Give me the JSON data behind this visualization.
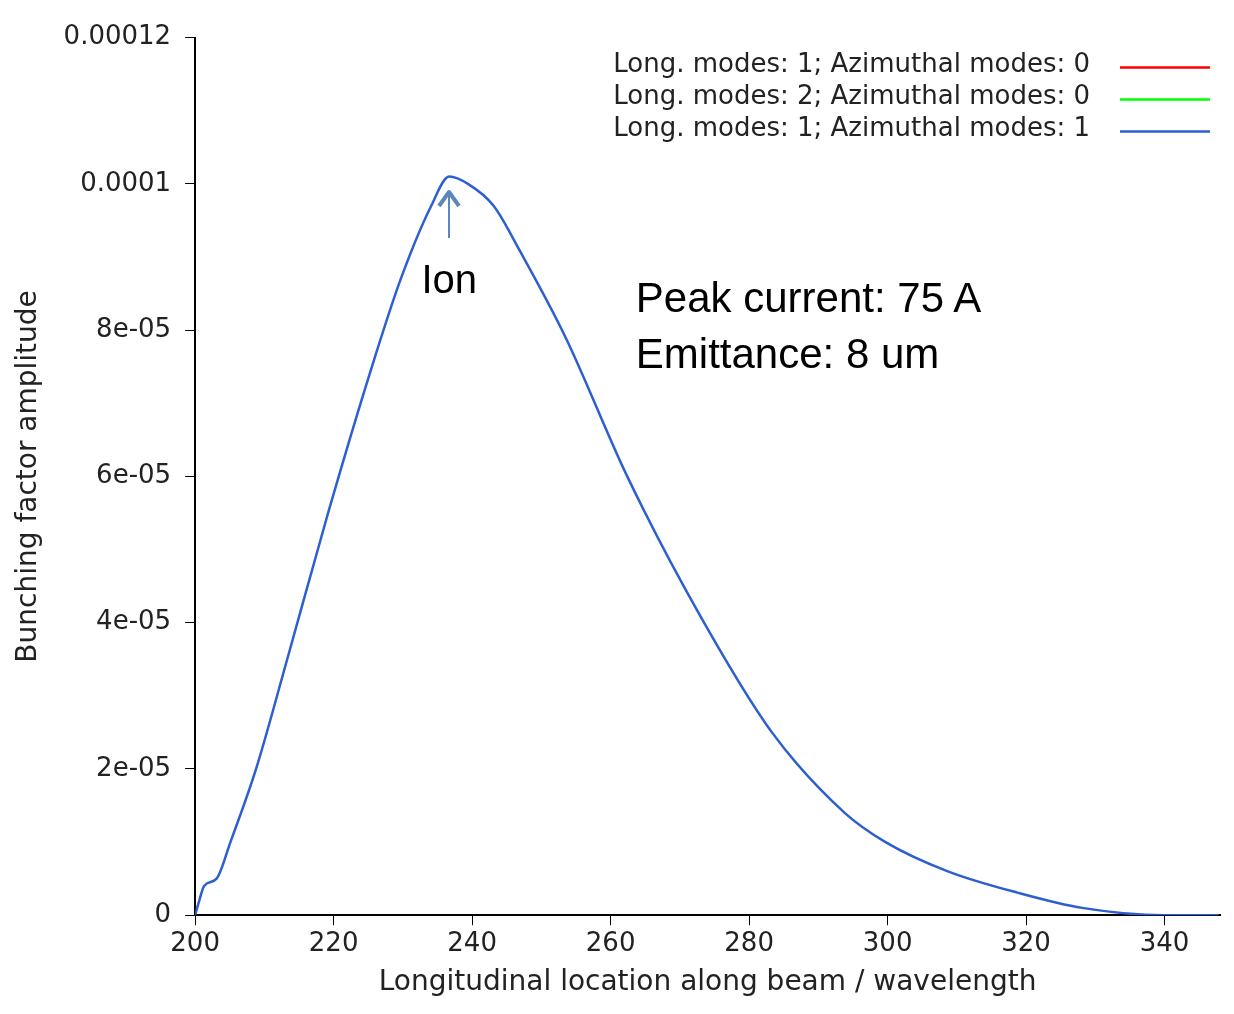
{
  "chart_data": {
    "type": "line",
    "xlabel": "Longitudinal location along beam / wavelength",
    "ylabel": "Bunching factor amplitude",
    "x": [
      200,
      200.6,
      201.3,
      203.1,
      205.1,
      208.8,
      213.3,
      219.2,
      225.2,
      229.7,
      234.1,
      236.7,
      239.4,
      243.1,
      246.8,
      253.5,
      262.4,
      272.9,
      283.3,
      293.8,
      299.7,
      308.7,
      319.1,
      328.1,
      340,
      347.8
    ],
    "series": [
      {
        "name": "Long. modes: 1; Azimuthal modes: 0",
        "color": "#ff0000",
        "values": [
          null,
          null,
          null,
          null,
          null,
          null,
          null,
          null,
          null,
          null,
          null,
          null,
          null,
          null,
          null,
          null,
          null,
          null,
          null,
          null,
          null,
          null,
          null,
          null,
          null,
          null
        ]
      },
      {
        "name": "Long. modes: 2; Azimuthal modes: 0",
        "color": "#00ff00",
        "values": [
          null,
          null,
          null,
          null,
          null,
          null,
          null,
          null,
          null,
          null,
          null,
          null,
          null,
          null,
          null,
          null,
          null,
          null,
          null,
          null,
          null,
          null,
          null,
          null,
          null,
          null
        ]
      },
      {
        "name": "Long. modes: 1; Azimuthal modes: 1",
        "color": "#2d5fd0",
        "values": [
          0,
          2e-06,
          4e-06,
          5e-06,
          1e-05,
          2e-05,
          3.5e-05,
          5.5e-05,
          7.4e-05,
          8.7e-05,
          9.7e-05,
          0.000101,
          0.0001,
          9.7e-05,
          9.1e-05,
          7.9e-05,
          6e-05,
          4.1e-05,
          2.5e-05,
          1.4e-05,
          1e-05,
          6e-06,
          3e-06,
          1e-06,
          0,
          0
        ]
      }
    ],
    "xlim": [
      200,
      348
    ],
    "xticks": [
      200,
      220,
      240,
      260,
      280,
      300,
      320,
      340
    ],
    "ylim": [
      0,
      0.00012
    ],
    "yticks": [
      0,
      {
        "value": 2e-05,
        "label": "2e-05"
      },
      {
        "value": 4e-05,
        "label": "4e-05"
      },
      {
        "value": 6e-05,
        "label": "6e-05"
      },
      {
        "value": 8e-05,
        "label": "8e-05"
      },
      0.0001,
      0.00012
    ],
    "grid": false,
    "legend": "top right",
    "marker": "none",
    "line_style": "solid",
    "annotations": [
      "Ion",
      "Peak current: 75 A",
      "Emittance: 8 um"
    ]
  }
}
